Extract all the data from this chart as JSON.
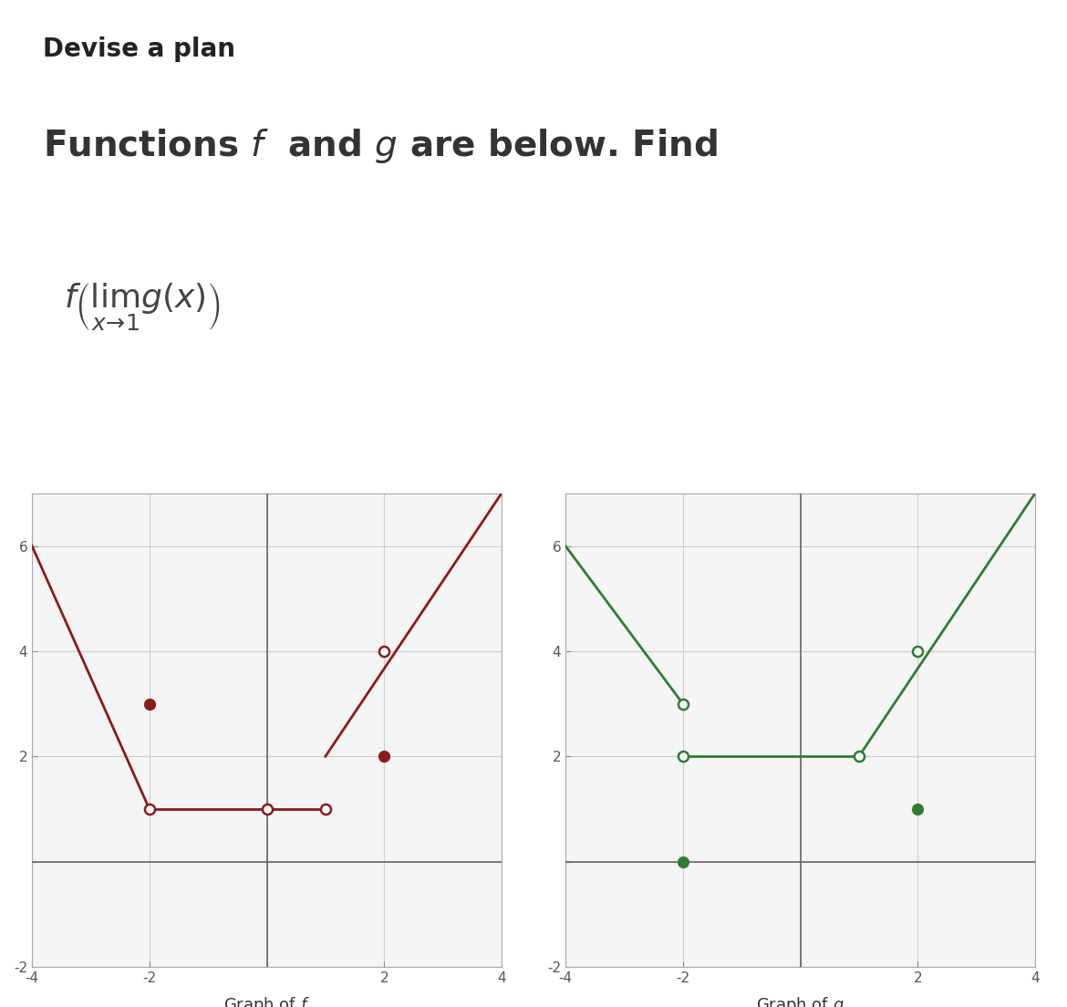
{
  "title_bold": "Devise a plan",
  "subtitle": "Functions $f$  and $g$ are below. Find",
  "formula": "$f\\left(\\lim_{x \\to 1} g(x)\\right)$",
  "bg_color": "#ffffff",
  "graph_f": {
    "color": "#8B1A1A",
    "line_segments": [
      [
        [
          -4,
          6
        ],
        [
          -2,
          1
        ]
      ],
      [
        [
          -2,
          1
        ],
        [
          1,
          1
        ]
      ],
      [
        [
          1,
          2
        ],
        [
          4,
          7
        ]
      ]
    ],
    "open_circles": [
      [
        -2,
        1
      ],
      [
        0,
        1
      ],
      [
        1,
        1
      ],
      [
        2,
        4
      ]
    ],
    "filled_circles": [
      [
        -2,
        3
      ],
      [
        2,
        2
      ]
    ],
    "xlabel": "Graph of $f$",
    "xlim": [
      -4,
      4
    ],
    "ylim": [
      -2,
      7
    ],
    "xticks": [
      -4,
      -2,
      0,
      2,
      4
    ],
    "yticks": [
      -2,
      0,
      2,
      4,
      6
    ]
  },
  "graph_g": {
    "color": "#2E7D32",
    "line_segments": [
      [
        [
          -4,
          6
        ],
        [
          -2,
          3
        ]
      ],
      [
        [
          -2,
          2
        ],
        [
          1,
          2
        ]
      ],
      [
        [
          1,
          2
        ],
        [
          4,
          7
        ]
      ]
    ],
    "open_circles": [
      [
        -2,
        3
      ],
      [
        -2,
        2
      ],
      [
        1,
        2
      ],
      [
        2,
        4
      ]
    ],
    "filled_circles": [
      [
        -2,
        0
      ],
      [
        2,
        1
      ]
    ],
    "xlabel": "Graph of $g$",
    "xlim": [
      -4,
      4
    ],
    "ylim": [
      -2,
      7
    ],
    "xticks": [
      -4,
      -2,
      0,
      2,
      4
    ],
    "yticks": [
      -2,
      0,
      2,
      4,
      6
    ]
  }
}
